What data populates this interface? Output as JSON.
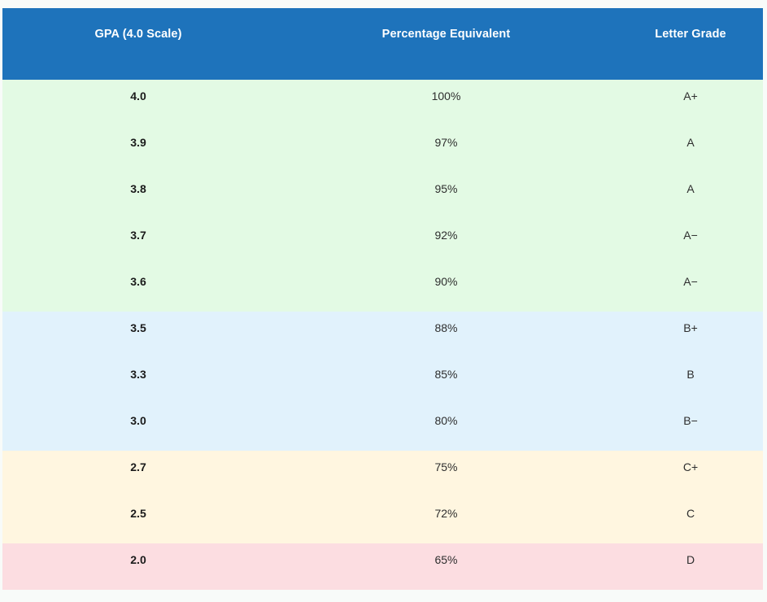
{
  "table": {
    "columns": [
      {
        "label": "GPA (4.0 Scale)"
      },
      {
        "label": "Percentage Equivalent"
      },
      {
        "label": "Letter Grade"
      }
    ],
    "rows": [
      {
        "gpa": "4.0",
        "percent": "100%",
        "letter": "A+",
        "tier": "a"
      },
      {
        "gpa": "3.9",
        "percent": "97%",
        "letter": "A",
        "tier": "a"
      },
      {
        "gpa": "3.8",
        "percent": "95%",
        "letter": "A",
        "tier": "a"
      },
      {
        "gpa": "3.7",
        "percent": "92%",
        "letter": "A−",
        "tier": "a"
      },
      {
        "gpa": "3.6",
        "percent": "90%",
        "letter": "A−",
        "tier": "a"
      },
      {
        "gpa": "3.5",
        "percent": "88%",
        "letter": "B+",
        "tier": "b"
      },
      {
        "gpa": "3.3",
        "percent": "85%",
        "letter": "B",
        "tier": "b"
      },
      {
        "gpa": "3.0",
        "percent": "80%",
        "letter": "B−",
        "tier": "b"
      },
      {
        "gpa": "2.7",
        "percent": "75%",
        "letter": "C+",
        "tier": "c"
      },
      {
        "gpa": "2.5",
        "percent": "72%",
        "letter": "C",
        "tier": "c"
      },
      {
        "gpa": "2.0",
        "percent": "65%",
        "letter": "D",
        "tier": "d"
      }
    ]
  },
  "colors": {
    "page_bg": "#f8fbf9",
    "header_bg": "#1e73bb",
    "header_text": "#ffffff",
    "tier_a_bg": "#e3fae4",
    "tier_b_bg": "#e1f2fc",
    "tier_c_bg": "#fff6e0",
    "tier_d_bg": "#fcdde1",
    "gpa_text": "#1b1b1b",
    "cell_text": "#2e2e2e"
  },
  "chart_data": {
    "type": "table",
    "title": "",
    "columns": [
      "GPA (4.0 Scale)",
      "Percentage Equivalent",
      "Letter Grade"
    ],
    "rows": [
      [
        "4.0",
        "100%",
        "A+"
      ],
      [
        "3.9",
        "97%",
        "A"
      ],
      [
        "3.8",
        "95%",
        "A"
      ],
      [
        "3.7",
        "92%",
        "A−"
      ],
      [
        "3.6",
        "90%",
        "A−"
      ],
      [
        "3.5",
        "88%",
        "B+"
      ],
      [
        "3.3",
        "85%",
        "B"
      ],
      [
        "3.0",
        "80%",
        "B−"
      ],
      [
        "2.7",
        "75%",
        "C+"
      ],
      [
        "2.5",
        "72%",
        "C"
      ],
      [
        "2.0",
        "65%",
        "D"
      ]
    ],
    "row_groups": [
      {
        "tier": "A-range",
        "rows": [
          0,
          1,
          2,
          3,
          4
        ],
        "bg": "#e3fae4"
      },
      {
        "tier": "B-range",
        "rows": [
          5,
          6,
          7
        ],
        "bg": "#e1f2fc"
      },
      {
        "tier": "C-range",
        "rows": [
          8,
          9
        ],
        "bg": "#fff6e0"
      },
      {
        "tier": "D-range",
        "rows": [
          10
        ],
        "bg": "#fcdde1"
      }
    ]
  }
}
